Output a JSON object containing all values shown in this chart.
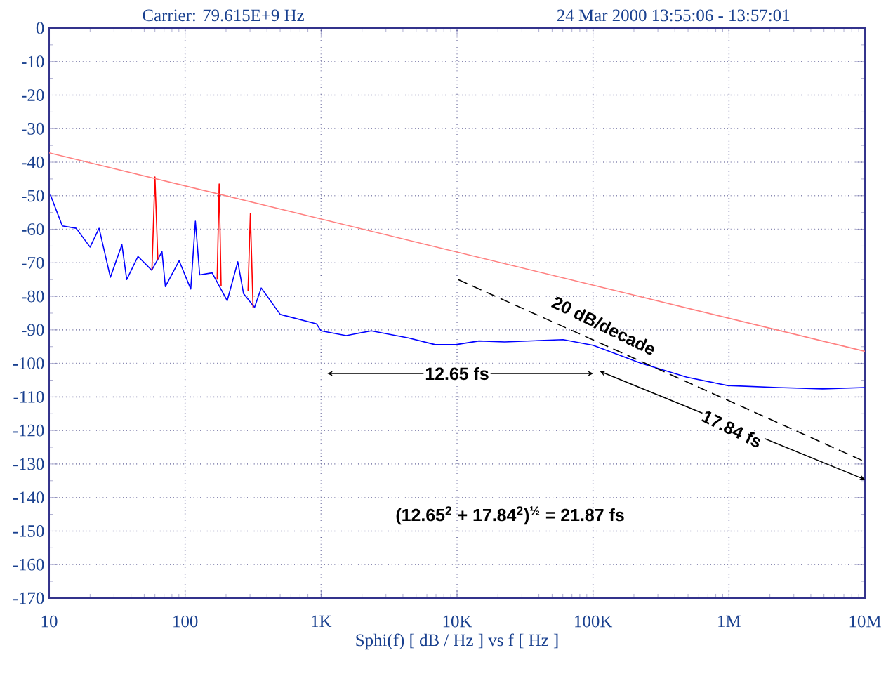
{
  "chart_data": {
    "type": "line",
    "title": "Carrier: 79.615E+9 Hz",
    "subtitle": "24 Mar 2000  13:55:06 - 13:57:01",
    "xlabel": "Sphi(f)   [ dB / Hz ]  vs  f   [ Hz ]",
    "log": "x",
    "xlim": [
      10,
      10000000
    ],
    "xticks": [
      {
        "value": 10,
        "label": "10"
      },
      {
        "value": 100,
        "label": "100"
      },
      {
        "value": 1000,
        "label": "1K"
      },
      {
        "value": 10000,
        "label": "10K"
      },
      {
        "value": 100000,
        "label": "100K"
      },
      {
        "value": 1000000,
        "label": "1M"
      },
      {
        "value": 10000000,
        "label": "10M"
      }
    ],
    "ylim": [
      -170,
      0
    ],
    "yticks": [
      -170,
      -160,
      -150,
      -140,
      -130,
      -120,
      -110,
      -100,
      -90,
      -80,
      -70,
      -60,
      -50,
      -40,
      -30,
      -20,
      -10,
      0
    ],
    "grid": true,
    "marker": "none",
    "series": [
      {
        "color": "#0000ff",
        "line_style": "solid",
        "x": [
          10.2,
          12.5,
          15.8,
          20,
          23.3,
          28.2,
          34.3,
          37.2,
          45,
          56.8,
          67.6,
          71.6,
          90.4,
          110,
          119,
          128,
          158,
          204,
          244,
          269,
          324,
          363,
          501,
          925,
          1000,
          1530,
          2340,
          4370,
          6920,
          9770,
          14500,
          22400,
          60300,
          100000,
          224000,
          490000,
          977000,
          2290000,
          4900000,
          10000000
        ],
        "values": [
          -49.7,
          -59,
          -59.7,
          -65.3,
          -59.7,
          -74.3,
          -64.6,
          -75,
          -68.1,
          -72.2,
          -66.7,
          -77.1,
          -69.4,
          -77.8,
          -57.6,
          -73.6,
          -73,
          -81.3,
          -69.7,
          -79.2,
          -83.3,
          -77.5,
          -85.4,
          -88.2,
          -90.3,
          -91.7,
          -90.3,
          -92.4,
          -94.4,
          -94.4,
          -93.3,
          -93.6,
          -92.9,
          -94.6,
          -99.9,
          -104.1,
          -106.6,
          -107.2,
          -107.6,
          -107.2
        ]
      },
      {
        "color": "#ff0000",
        "line_style": "solid",
        "x": [
          57,
          60,
          63,
          100,
          172,
          178,
          184,
          250,
          290,
          302,
          316
        ],
        "values": [
          -72.2,
          -44.4,
          -69,
          null,
          -75,
          -46.5,
          -77,
          null,
          -78.5,
          -55.3,
          -83.3
        ]
      },
      {
        "color": "#ff8080",
        "line_style": "solid",
        "x": [
          10,
          10000000
        ],
        "values": [
          -37.2,
          -96.4
        ]
      },
      {
        "color": "#000000",
        "line_style": "dashed",
        "x": [
          10200,
          10000000
        ],
        "values": [
          -75,
          -129.3
        ]
      }
    ],
    "annotations": [
      "12.65 fs",
      "20 dB/decade",
      "17.84 fs",
      "(12.65$^{2}$ + 17.84$^{2}$)$^{½}$ = 21.87 fs"
    ]
  }
}
